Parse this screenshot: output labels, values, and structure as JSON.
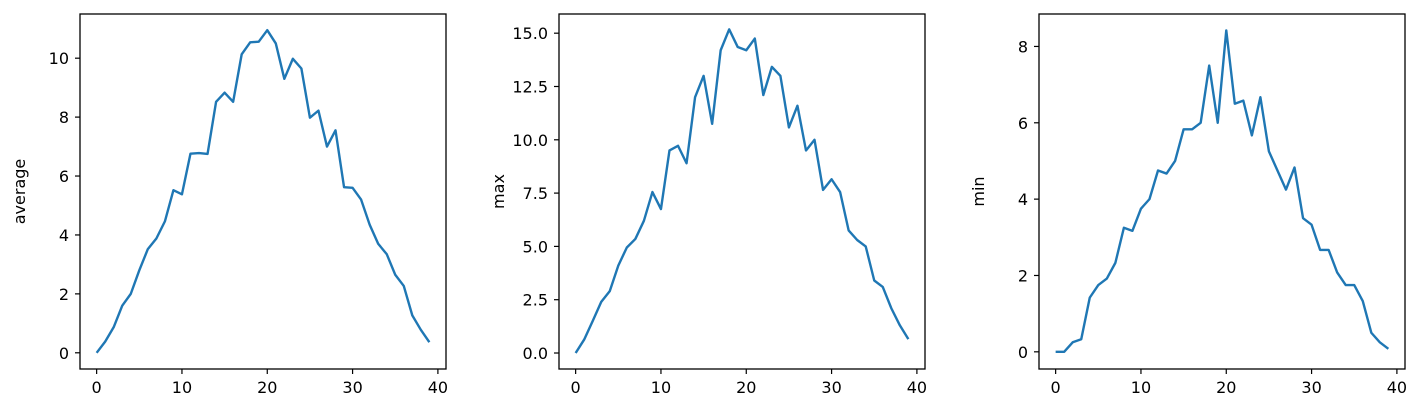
{
  "chart_data": [
    {
      "type": "line",
      "title": "",
      "xlabel": "",
      "ylabel": "average",
      "xlim": [
        -1.95,
        40.95
      ],
      "ylim": [
        -0.55,
        11.5
      ],
      "xticks": [
        0,
        10,
        20,
        30,
        40
      ],
      "xtick_labels": [
        "0",
        "10",
        "20",
        "30",
        "40"
      ],
      "yticks": [
        0,
        2,
        4,
        6,
        8,
        10
      ],
      "ytick_labels": [
        "0",
        "2",
        "4",
        "6",
        "8",
        "10"
      ],
      "grid": false,
      "series": [
        {
          "color": "#1f77b4",
          "x": [
            0,
            1,
            2,
            3,
            4,
            5,
            6,
            7,
            8,
            9,
            10,
            11,
            12,
            13,
            14,
            15,
            16,
            17,
            18,
            19,
            20,
            21,
            22,
            23,
            24,
            25,
            26,
            27,
            28,
            29,
            30,
            31,
            32,
            33,
            34,
            35,
            36,
            37,
            38,
            39
          ],
          "y": [
            0.0,
            0.38,
            0.87,
            1.6,
            2.0,
            2.8,
            3.52,
            3.88,
            4.46,
            5.52,
            5.38,
            6.76,
            6.78,
            6.75,
            8.52,
            8.83,
            8.52,
            10.13,
            10.54,
            10.56,
            10.95,
            10.5,
            9.3,
            9.98,
            9.65,
            7.98,
            8.22,
            7.0,
            7.55,
            5.62,
            5.6,
            5.2,
            4.35,
            3.7,
            3.35,
            2.65,
            2.27,
            1.27,
            0.78,
            0.36
          ]
        }
      ]
    },
    {
      "type": "line",
      "title": "",
      "xlabel": "",
      "ylabel": "max",
      "xlim": [
        -1.95,
        40.95
      ],
      "ylim": [
        -0.75,
        15.9
      ],
      "xticks": [
        0,
        10,
        20,
        30,
        40
      ],
      "xtick_labels": [
        "0",
        "10",
        "20",
        "30",
        "40"
      ],
      "yticks": [
        0,
        2.5,
        5,
        7.5,
        10,
        12.5,
        15
      ],
      "ytick_labels": [
        "0.0",
        "2.5",
        "5.0",
        "7.5",
        "10.0",
        "12.5",
        "15.0"
      ],
      "grid": false,
      "series": [
        {
          "color": "#1f77b4",
          "x": [
            0,
            1,
            2,
            3,
            4,
            5,
            6,
            7,
            8,
            9,
            10,
            11,
            12,
            13,
            14,
            15,
            16,
            17,
            18,
            19,
            20,
            21,
            22,
            23,
            24,
            25,
            26,
            27,
            28,
            29,
            30,
            31,
            32,
            33,
            34,
            35,
            36,
            37,
            38,
            39
          ],
          "y": [
            0.0,
            0.63,
            1.5,
            2.4,
            2.9,
            4.1,
            4.95,
            5.35,
            6.2,
            7.55,
            6.75,
            9.5,
            9.72,
            8.9,
            12.0,
            13.0,
            10.75,
            14.2,
            15.18,
            14.35,
            14.2,
            14.75,
            12.1,
            13.42,
            13.0,
            10.58,
            11.6,
            9.5,
            10.0,
            7.65,
            8.15,
            7.55,
            5.75,
            5.3,
            5.0,
            3.4,
            3.1,
            2.1,
            1.3,
            0.65
          ]
        }
      ]
    },
    {
      "type": "line",
      "title": "",
      "xlabel": "",
      "ylabel": "min",
      "xlim": [
        -1.95,
        40.95
      ],
      "ylim": [
        -0.45,
        8.85
      ],
      "xticks": [
        0,
        10,
        20,
        30,
        40
      ],
      "xtick_labels": [
        "0",
        "10",
        "20",
        "30",
        "40"
      ],
      "yticks": [
        0,
        2,
        4,
        6,
        8
      ],
      "ytick_labels": [
        "0",
        "2",
        "4",
        "6",
        "8"
      ],
      "grid": false,
      "series": [
        {
          "color": "#1f77b4",
          "x": [
            0,
            1,
            2,
            3,
            4,
            5,
            6,
            7,
            8,
            9,
            10,
            11,
            12,
            13,
            14,
            15,
            16,
            17,
            18,
            19,
            20,
            21,
            22,
            23,
            24,
            25,
            26,
            27,
            28,
            29,
            30,
            31,
            32,
            33,
            34,
            35,
            36,
            37,
            38,
            39
          ],
          "y": [
            0.0,
            0.0,
            0.25,
            0.33,
            1.42,
            1.75,
            1.92,
            2.33,
            3.25,
            3.17,
            3.75,
            4.0,
            4.75,
            4.67,
            5.0,
            5.83,
            5.83,
            6.0,
            7.5,
            6.0,
            8.42,
            6.5,
            6.58,
            5.67,
            6.67,
            5.25,
            4.75,
            4.25,
            4.83,
            3.5,
            3.33,
            2.67,
            2.67,
            2.08,
            1.75,
            1.75,
            1.33,
            0.5,
            0.25,
            0.08
          ]
        }
      ]
    }
  ]
}
